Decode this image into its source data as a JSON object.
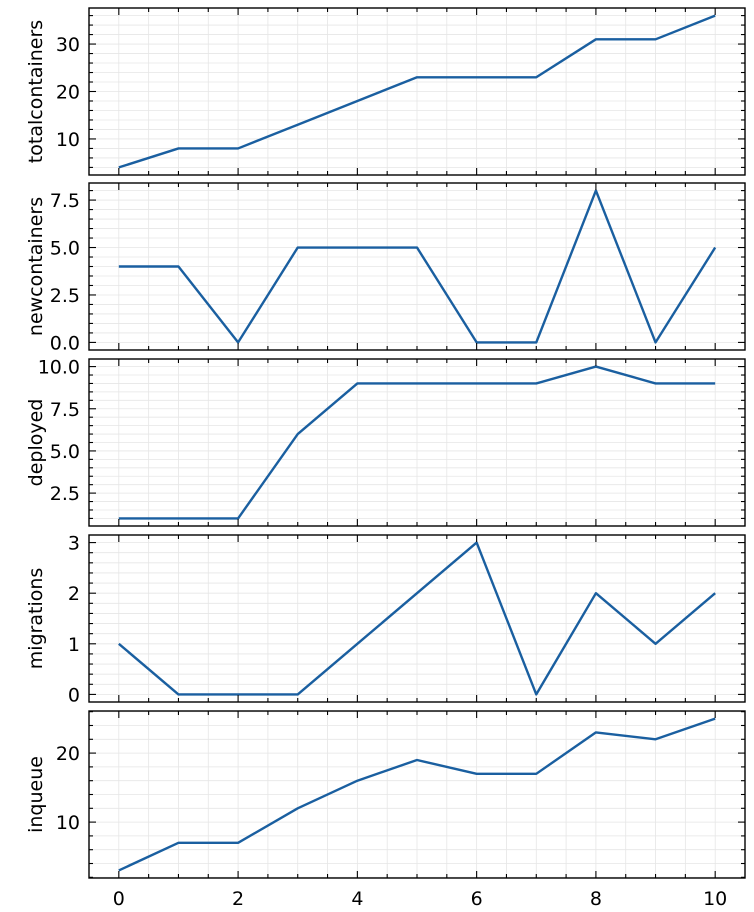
{
  "chart_data": [
    {
      "type": "line",
      "ylabel": "totalcontainers",
      "x": [
        0,
        1,
        2,
        3,
        4,
        5,
        6,
        7,
        8,
        9,
        10
      ],
      "series": [
        {
          "values": [
            4,
            8,
            8,
            13,
            18,
            23,
            23,
            23,
            31,
            31,
            36
          ]
        }
      ],
      "ylim": [
        2.4,
        37.6
      ],
      "yticks": [
        10,
        20,
        30
      ],
      "ytick_labels": [
        "10",
        "20",
        "30"
      ],
      "xlim": [
        -0.5,
        10.5
      ],
      "grid": true
    },
    {
      "type": "line",
      "ylabel": "newcontainers",
      "x": [
        0,
        1,
        2,
        3,
        4,
        5,
        6,
        7,
        8,
        9,
        10
      ],
      "series": [
        {
          "values": [
            4,
            4,
            0,
            5,
            5,
            5,
            0,
            0,
            8,
            0,
            5
          ]
        }
      ],
      "ylim": [
        -0.4,
        8.4
      ],
      "yticks": [
        0,
        2.5,
        5,
        7.5
      ],
      "ytick_labels": [
        "0.0",
        "2.5",
        "5.0",
        "7.5"
      ],
      "xlim": [
        -0.5,
        10.5
      ],
      "grid": true
    },
    {
      "type": "line",
      "ylabel": "deployed",
      "x": [
        0,
        1,
        2,
        3,
        4,
        5,
        6,
        7,
        8,
        9,
        10
      ],
      "series": [
        {
          "values": [
            1,
            1,
            1,
            6,
            9,
            9,
            9,
            9,
            10,
            9,
            9
          ]
        }
      ],
      "ylim": [
        0.55,
        10.45
      ],
      "yticks": [
        2.5,
        5,
        7.5,
        10
      ],
      "ytick_labels": [
        "2.5",
        "5.0",
        "7.5",
        "10.0"
      ],
      "xlim": [
        -0.5,
        10.5
      ],
      "grid": true
    },
    {
      "type": "line",
      "ylabel": "migrations",
      "x": [
        0,
        1,
        2,
        3,
        4,
        5,
        6,
        7,
        8,
        9,
        10
      ],
      "series": [
        {
          "values": [
            1,
            0,
            0,
            0,
            1,
            2,
            3,
            0,
            2,
            1,
            2
          ]
        }
      ],
      "ylim": [
        -0.15,
        3.15
      ],
      "yticks": [
        0,
        1,
        2,
        3
      ],
      "ytick_labels": [
        "0",
        "1",
        "2",
        "3"
      ],
      "xlim": [
        -0.5,
        10.5
      ],
      "grid": true
    },
    {
      "type": "line",
      "ylabel": "inqueue",
      "x": [
        0,
        1,
        2,
        3,
        4,
        5,
        6,
        7,
        8,
        9,
        10
      ],
      "series": [
        {
          "values": [
            3,
            7,
            7,
            12,
            16,
            19,
            17,
            17,
            23,
            22,
            25
          ]
        }
      ],
      "ylim": [
        1.9,
        26.1
      ],
      "yticks": [
        10,
        20
      ],
      "ytick_labels": [
        "10",
        "20"
      ],
      "xlim": [
        -0.5,
        10.5
      ],
      "xticks": [
        0,
        2,
        4,
        6,
        8,
        10
      ],
      "xtick_labels": [
        "0",
        "2",
        "4",
        "6",
        "8",
        "10"
      ],
      "grid": true
    }
  ],
  "colors": {
    "line": "#1a5fa0",
    "grid": "#e6e6e6",
    "axes": "#000000"
  }
}
